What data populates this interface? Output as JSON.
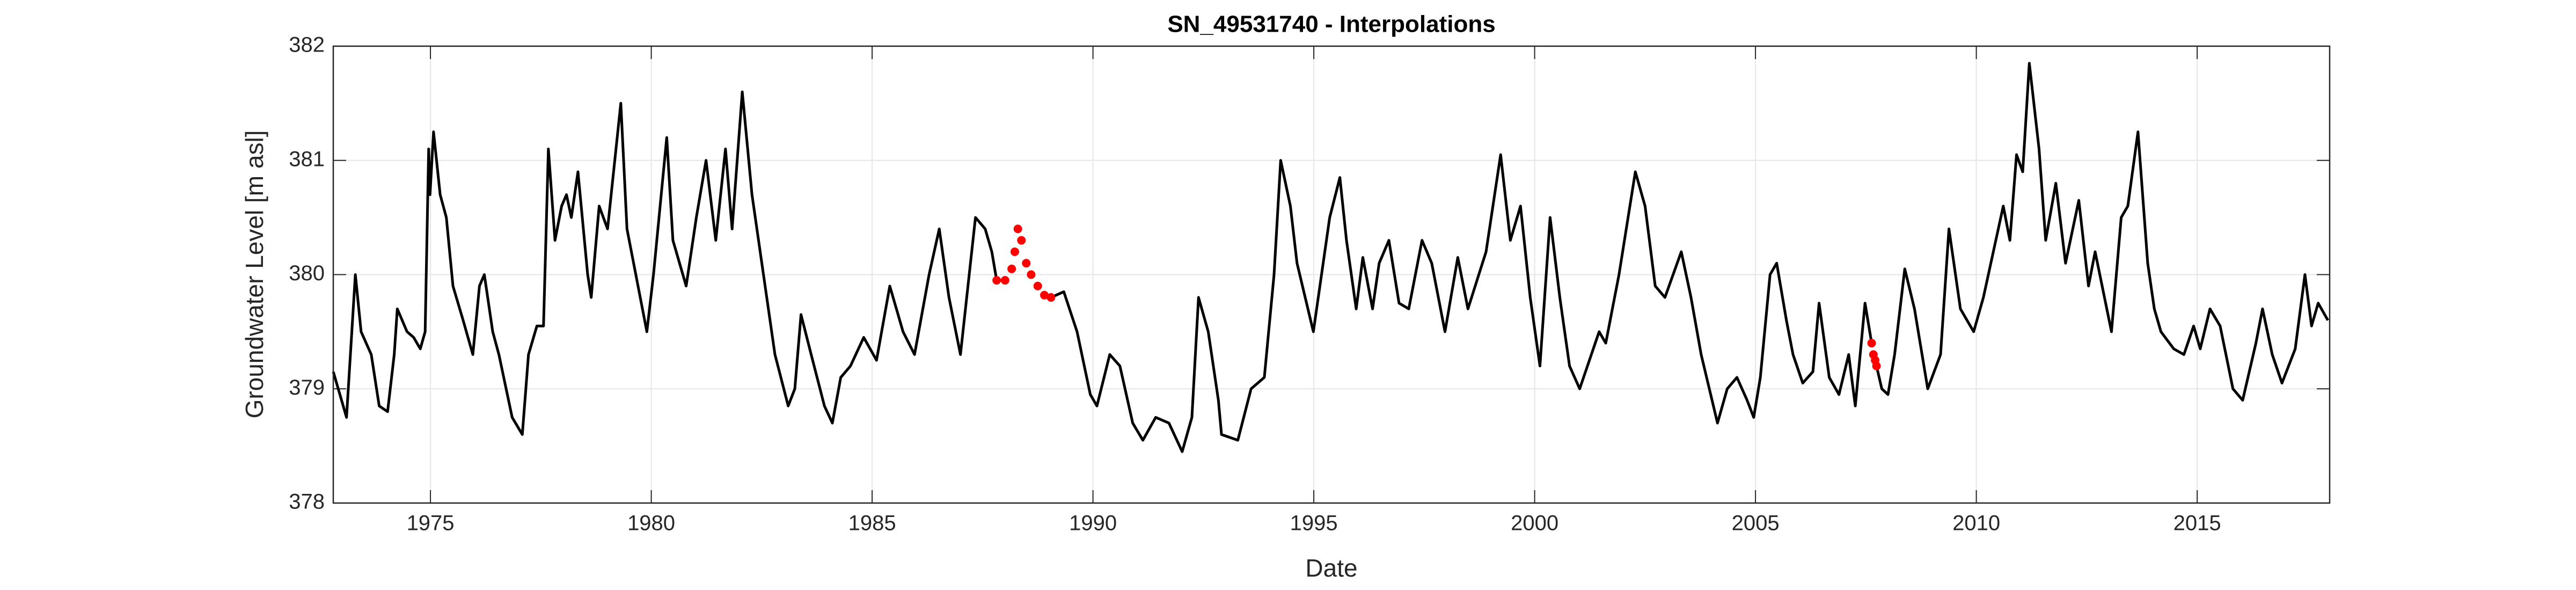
{
  "chart_data": {
    "type": "line",
    "title": "SN_49531740 - Interpolations",
    "x_label": "Date",
    "y_label": "Groundwater Level [m asl]",
    "xlim": [
      1972.8,
      2018.0
    ],
    "xticks": [
      1975,
      1980,
      1985,
      1990,
      1995,
      2000,
      2005,
      2010,
      2015
    ],
    "ylim": [
      378,
      382
    ],
    "yticks": [
      378,
      379,
      380,
      381,
      382
    ],
    "grid": true,
    "x": [
      1972.8,
      1973.1,
      1973.3,
      1973.43,
      1973.66,
      1973.84,
      1974.03,
      1974.18,
      1974.25,
      1974.47,
      1974.62,
      1974.77,
      1974.88,
      1974.96,
      1974.99,
      1975.07,
      1975.22,
      1975.36,
      1975.51,
      1975.74,
      1975.96,
      1976.11,
      1976.22,
      1976.41,
      1976.55,
      1976.85,
      1977.08,
      1977.22,
      1977.41,
      1977.56,
      1977.67,
      1977.82,
      1977.97,
      1978.08,
      1978.19,
      1978.34,
      1978.56,
      1978.64,
      1978.82,
      1979.01,
      1979.31,
      1979.45,
      1979.75,
      1979.9,
      1980.05,
      1980.2,
      1980.35,
      1980.49,
      1980.79,
      1981.02,
      1981.24,
      1981.46,
      1981.68,
      1981.83,
      1982.06,
      1982.28,
      1982.54,
      1982.8,
      1983.1,
      1983.25,
      1983.39,
      1983.62,
      1983.92,
      1984.1,
      1984.29,
      1984.51,
      1984.81,
      1985.1,
      1985.4,
      1985.7,
      1985.96,
      1986.29,
      1986.52,
      1986.74,
      1987.0,
      1987.34,
      1987.56,
      1987.71,
      1987.82,
      1988.01,
      1988.16,
      1988.23,
      1988.3,
      1988.38,
      1988.49,
      1988.6,
      1988.75,
      1988.9,
      1989.05,
      1989.34,
      1989.64,
      1989.94,
      1990.09,
      1990.38,
      1990.61,
      1990.9,
      1991.13,
      1991.42,
      1991.72,
      1992.02,
      1992.24,
      1992.39,
      1992.61,
      1992.84,
      1992.91,
      1993.28,
      1993.58,
      1993.88,
      1994.1,
      1994.25,
      1994.47,
      1994.62,
      1994.99,
      1995.36,
      1995.59,
      1995.74,
      1995.96,
      1996.11,
      1996.33,
      1996.48,
      1996.7,
      1996.93,
      1997.15,
      1997.45,
      1997.67,
      1997.97,
      1998.26,
      1998.49,
      1998.9,
      1999.23,
      1999.45,
      1999.68,
      1999.9,
      2000.12,
      2000.35,
      2000.57,
      2000.79,
      2001.02,
      2001.46,
      2001.61,
      2001.91,
      2002.28,
      2002.5,
      2002.73,
      2002.95,
      2003.32,
      2003.54,
      2003.77,
      2004.14,
      2004.36,
      2004.58,
      2004.81,
      2004.96,
      2005.11,
      2005.33,
      2005.48,
      2005.7,
      2005.85,
      2006.07,
      2006.3,
      2006.44,
      2006.67,
      2006.89,
      2007.11,
      2007.26,
      2007.48,
      2007.63,
      2007.67,
      2007.71,
      2007.74,
      2007.86,
      2008.0,
      2008.15,
      2008.38,
      2008.6,
      2008.9,
      2009.19,
      2009.38,
      2009.64,
      2009.94,
      2010.16,
      2010.61,
      2010.76,
      2010.91,
      2011.05,
      2011.2,
      2011.42,
      2011.57,
      2011.8,
      2012.02,
      2012.32,
      2012.54,
      2012.69,
      2013.06,
      2013.28,
      2013.43,
      2013.66,
      2013.88,
      2014.03,
      2014.18,
      2014.47,
      2014.7,
      2014.92,
      2015.07,
      2015.29,
      2015.52,
      2015.81,
      2016.03,
      2016.33,
      2016.48,
      2016.7,
      2016.92,
      2017.22,
      2017.44,
      2017.59,
      2017.74,
      2017.96
    ],
    "series": [
      {
        "color": "#000000",
        "line": true,
        "marker": false,
        "values": [
          379.15,
          378.75,
          380.0,
          379.5,
          379.3,
          378.85,
          378.8,
          379.3,
          379.7,
          379.5,
          379.45,
          379.35,
          379.5,
          381.1,
          380.7,
          381.25,
          380.7,
          380.5,
          379.9,
          379.6,
          379.3,
          379.9,
          380.0,
          379.5,
          379.3,
          378.75,
          378.6,
          379.3,
          379.55,
          379.55,
          381.1,
          380.3,
          380.6,
          380.7,
          380.5,
          380.9,
          380.0,
          379.8,
          380.6,
          380.4,
          381.5,
          380.4,
          379.8,
          379.5,
          380.0,
          380.6,
          381.2,
          380.3,
          379.9,
          380.5,
          381.0,
          380.3,
          381.1,
          380.4,
          381.6,
          380.7,
          380.0,
          379.3,
          378.85,
          379.0,
          379.65,
          379.3,
          378.85,
          378.7,
          379.1,
          379.2,
          379.45,
          379.25,
          379.9,
          379.5,
          379.3,
          380.0,
          380.4,
          379.8,
          379.3,
          380.5,
          380.4,
          380.2,
          379.95,
          null,
          null,
          null,
          null,
          null,
          null,
          null,
          null,
          null,
          379.8,
          379.85,
          379.5,
          378.95,
          378.85,
          379.3,
          379.2,
          378.7,
          378.55,
          378.75,
          378.7,
          378.45,
          378.75,
          379.8,
          379.5,
          378.9,
          378.6,
          378.55,
          379.0,
          379.1,
          380.0,
          381.0,
          380.6,
          380.1,
          379.5,
          380.5,
          380.85,
          380.3,
          379.7,
          380.15,
          379.7,
          380.1,
          380.3,
          379.75,
          379.7,
          380.3,
          380.1,
          379.5,
          380.15,
          379.7,
          380.2,
          381.05,
          380.3,
          380.6,
          379.8,
          379.2,
          380.5,
          379.8,
          379.2,
          379.0,
          379.5,
          379.4,
          380.0,
          380.9,
          380.6,
          379.9,
          379.8,
          380.2,
          379.8,
          379.3,
          378.7,
          379.0,
          379.1,
          378.9,
          378.75,
          379.1,
          380.0,
          380.1,
          379.6,
          379.3,
          379.05,
          379.15,
          379.75,
          379.1,
          378.95,
          379.3,
          378.85,
          379.75,
          379.4,
          null,
          null,
          379.2,
          379.0,
          378.95,
          379.3,
          380.05,
          379.7,
          379.0,
          379.3,
          380.4,
          379.7,
          379.5,
          379.8,
          380.6,
          380.3,
          381.05,
          380.9,
          381.85,
          381.1,
          380.3,
          380.8,
          380.1,
          380.65,
          379.9,
          380.2,
          379.5,
          380.5,
          380.6,
          381.25,
          380.1,
          379.7,
          379.5,
          379.35,
          379.3,
          379.55,
          379.35,
          379.7,
          379.55,
          379.0,
          378.9,
          379.4,
          379.7,
          379.3,
          379.05,
          379.35,
          380.0,
          379.55,
          379.75,
          379.6
        ]
      },
      {
        "color": "#ff0000",
        "line": false,
        "marker": true,
        "values": [
          null,
          null,
          null,
          null,
          null,
          null,
          null,
          null,
          null,
          null,
          null,
          null,
          null,
          null,
          null,
          null,
          null,
          null,
          null,
          null,
          null,
          null,
          null,
          null,
          null,
          null,
          null,
          null,
          null,
          null,
          null,
          null,
          null,
          null,
          null,
          null,
          null,
          null,
          null,
          null,
          null,
          null,
          null,
          null,
          null,
          null,
          null,
          null,
          null,
          null,
          null,
          null,
          null,
          null,
          null,
          null,
          null,
          null,
          null,
          null,
          null,
          null,
          null,
          null,
          null,
          null,
          null,
          null,
          null,
          null,
          null,
          null,
          null,
          null,
          null,
          null,
          null,
          null,
          379.95,
          379.95,
          380.05,
          380.2,
          380.4,
          380.3,
          380.1,
          380.0,
          379.9,
          379.82,
          379.8,
          null,
          null,
          null,
          null,
          null,
          null,
          null,
          null,
          null,
          null,
          null,
          null,
          null,
          null,
          null,
          null,
          null,
          null,
          null,
          null,
          null,
          null,
          null,
          null,
          null,
          null,
          null,
          null,
          null,
          null,
          null,
          null,
          null,
          null,
          null,
          null,
          null,
          null,
          null,
          null,
          null,
          null,
          null,
          null,
          null,
          null,
          null,
          null,
          null,
          null,
          null,
          null,
          null,
          null,
          null,
          null,
          null,
          null,
          null,
          null,
          null,
          null,
          null,
          null,
          null,
          null,
          null,
          null,
          null,
          null,
          null,
          null,
          null,
          null,
          null,
          null,
          null,
          379.4,
          379.3,
          379.25,
          379.2,
          null,
          null,
          null,
          null,
          null,
          null,
          null,
          null,
          null,
          null,
          null,
          null,
          null,
          null,
          null,
          null,
          null,
          null,
          null,
          null,
          null,
          null,
          null,
          null,
          null,
          null,
          null,
          null,
          null,
          null,
          null,
          null,
          null,
          null,
          null,
          null,
          null,
          null,
          null,
          null,
          null,
          null,
          null,
          null,
          null,
          null,
          null
        ]
      }
    ]
  }
}
